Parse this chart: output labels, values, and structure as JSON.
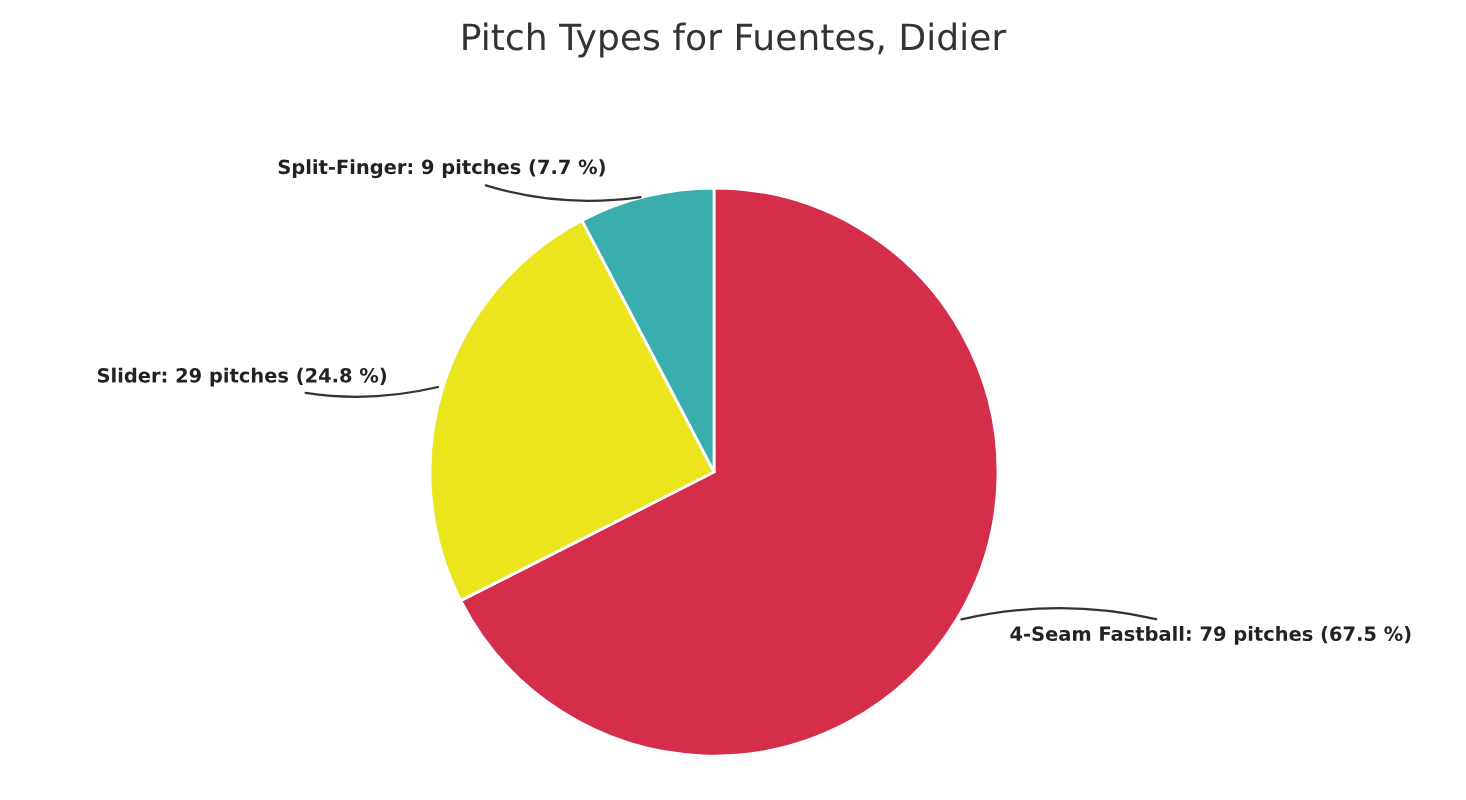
{
  "chart_data": {
    "type": "pie",
    "title": "Pitch Types for Fuentes, Didier",
    "categories": [
      "4-Seam Fastball: 79 pitches (67.5 %)",
      "Slider: 29 pitches (24.8 %)",
      "Split-Finger: 9 pitches (7.7 %)"
    ],
    "values": [
      79,
      29,
      9
    ],
    "colors": [
      "#d42e4a",
      "#ebe51e",
      "#3aaeae"
    ]
  }
}
